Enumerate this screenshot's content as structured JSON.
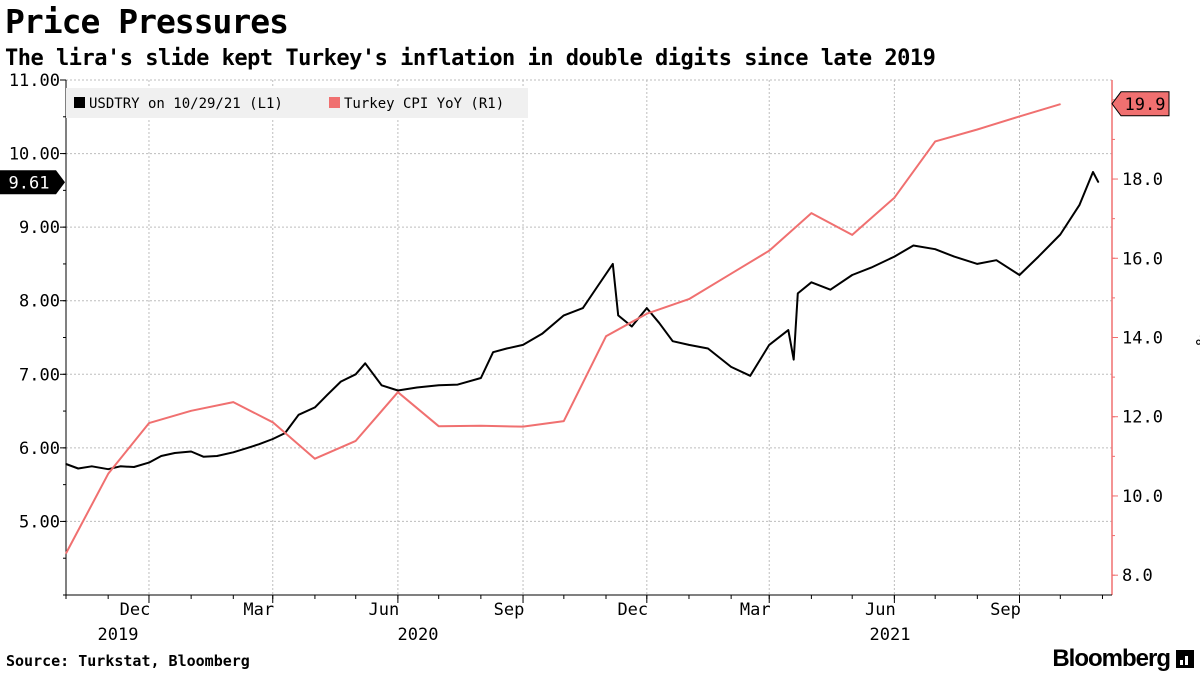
{
  "title": "Price Pressures",
  "subtitle": "The lira's slide kept Turkey's inflation in double digits since late 2019",
  "source": "Source: Turkstat, Bloomberg",
  "brand": "Bloomberg",
  "chart_data": {
    "type": "line",
    "left_axis": {
      "ticks": [
        "11.00",
        "10.00",
        "9.00",
        "8.00",
        "7.00",
        "6.00",
        "5.00"
      ],
      "range": [
        4.0,
        11.0
      ]
    },
    "right_axis": {
      "ticks": [
        "18.0",
        "16.0",
        "14.0",
        "12.0",
        "10.0",
        "8.0"
      ],
      "range": [
        7.5,
        20.5
      ],
      "unit_label": "%"
    },
    "x_axis": {
      "months": [
        "Dec",
        "Mar",
        "Jun",
        "Sep",
        "Dec",
        "Mar",
        "Jun",
        "Sep"
      ],
      "years": [
        "2019",
        "2020",
        "2021"
      ],
      "range": [
        "2019-10-01",
        "2021-11-08"
      ]
    },
    "legend": {
      "placement": "top-left",
      "entries": [
        "USDTRY on 10/29/21 (L1)",
        "Turkey CPI YoY (R1)"
      ]
    },
    "series": [
      {
        "name": "USDTRY on 10/29/21 (L1)",
        "axis": "left",
        "color": "#000000",
        "last_value_label": "9.61",
        "points": [
          [
            "2019-10-01",
            5.78
          ],
          [
            "2019-10-10",
            5.72
          ],
          [
            "2019-10-20",
            5.75
          ],
          [
            "2019-11-01",
            5.71
          ],
          [
            "2019-11-10",
            5.75
          ],
          [
            "2019-11-20",
            5.74
          ],
          [
            "2019-12-01",
            5.8
          ],
          [
            "2019-12-10",
            5.89
          ],
          [
            "2019-12-20",
            5.93
          ],
          [
            "2020-01-01",
            5.95
          ],
          [
            "2020-01-10",
            5.88
          ],
          [
            "2020-01-20",
            5.89
          ],
          [
            "2020-02-01",
            5.94
          ],
          [
            "2020-02-10",
            5.99
          ],
          [
            "2020-02-20",
            6.05
          ],
          [
            "2020-03-01",
            6.12
          ],
          [
            "2020-03-10",
            6.2
          ],
          [
            "2020-03-20",
            6.45
          ],
          [
            "2020-04-01",
            6.55
          ],
          [
            "2020-04-10",
            6.72
          ],
          [
            "2020-04-20",
            6.9
          ],
          [
            "2020-05-01",
            7.0
          ],
          [
            "2020-05-08",
            7.15
          ],
          [
            "2020-05-20",
            6.85
          ],
          [
            "2020-06-01",
            6.78
          ],
          [
            "2020-06-15",
            6.82
          ],
          [
            "2020-07-01",
            6.85
          ],
          [
            "2020-07-15",
            6.86
          ],
          [
            "2020-08-01",
            6.95
          ],
          [
            "2020-08-10",
            7.3
          ],
          [
            "2020-08-20",
            7.35
          ],
          [
            "2020-09-01",
            7.4
          ],
          [
            "2020-09-15",
            7.55
          ],
          [
            "2020-10-01",
            7.8
          ],
          [
            "2020-10-15",
            7.9
          ],
          [
            "2020-10-26",
            8.2
          ],
          [
            "2020-11-06",
            8.5
          ],
          [
            "2020-11-10",
            7.8
          ],
          [
            "2020-11-20",
            7.65
          ],
          [
            "2020-12-01",
            7.9
          ],
          [
            "2020-12-10",
            7.7
          ],
          [
            "2020-12-20",
            7.45
          ],
          [
            "2021-01-01",
            7.4
          ],
          [
            "2021-01-15",
            7.35
          ],
          [
            "2021-02-01",
            7.1
          ],
          [
            "2021-02-15",
            6.98
          ],
          [
            "2021-03-01",
            7.4
          ],
          [
            "2021-03-15",
            7.6
          ],
          [
            "2021-03-19",
            7.2
          ],
          [
            "2021-03-22",
            8.1
          ],
          [
            "2021-04-01",
            8.25
          ],
          [
            "2021-04-15",
            8.15
          ],
          [
            "2021-05-01",
            8.35
          ],
          [
            "2021-05-15",
            8.45
          ],
          [
            "2021-06-01",
            8.6
          ],
          [
            "2021-06-15",
            8.75
          ],
          [
            "2021-07-01",
            8.7
          ],
          [
            "2021-07-15",
            8.6
          ],
          [
            "2021-08-01",
            8.5
          ],
          [
            "2021-08-15",
            8.55
          ],
          [
            "2021-09-01",
            8.35
          ],
          [
            "2021-09-15",
            8.6
          ],
          [
            "2021-10-01",
            8.9
          ],
          [
            "2021-10-15",
            9.3
          ],
          [
            "2021-10-25",
            9.75
          ],
          [
            "2021-10-29",
            9.61
          ]
        ]
      },
      {
        "name": "Turkey CPI YoY (R1)",
        "axis": "right",
        "color": "#f07070",
        "last_value_label": "19.9",
        "points": [
          [
            "2019-10-01",
            8.55
          ],
          [
            "2019-11-01",
            10.56
          ],
          [
            "2019-12-01",
            11.84
          ],
          [
            "2020-01-01",
            12.15
          ],
          [
            "2020-02-01",
            12.37
          ],
          [
            "2020-03-01",
            11.86
          ],
          [
            "2020-04-01",
            10.94
          ],
          [
            "2020-05-01",
            11.39
          ],
          [
            "2020-06-01",
            12.62
          ],
          [
            "2020-07-01",
            11.76
          ],
          [
            "2020-08-01",
            11.77
          ],
          [
            "2020-09-01",
            11.75
          ],
          [
            "2020-10-01",
            11.89
          ],
          [
            "2020-11-01",
            14.03
          ],
          [
            "2020-12-01",
            14.6
          ],
          [
            "2021-01-01",
            14.97
          ],
          [
            "2021-02-01",
            15.61
          ],
          [
            "2021-03-01",
            16.19
          ],
          [
            "2021-04-01",
            17.14
          ],
          [
            "2021-05-01",
            16.59
          ],
          [
            "2021-06-01",
            17.53
          ],
          [
            "2021-07-01",
            18.95
          ],
          [
            "2021-08-01",
            19.25
          ],
          [
            "2021-09-01",
            19.58
          ],
          [
            "2021-10-01",
            19.89
          ]
        ]
      }
    ],
    "grid": true
  }
}
